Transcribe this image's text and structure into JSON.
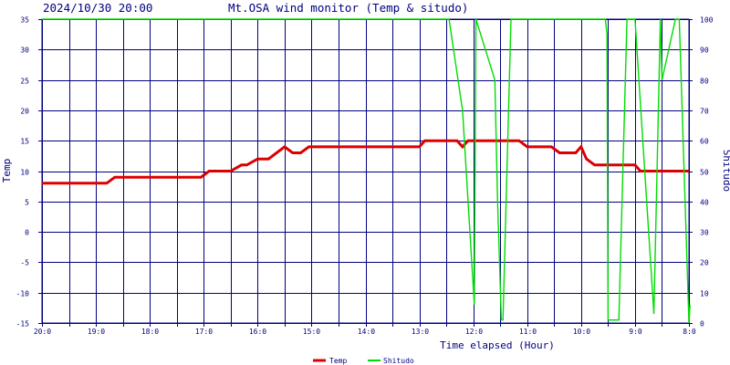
{
  "header": {
    "timestamp": "2024/10/30 20:00",
    "title": "Mt.OSA wind monitor (Temp & situdo)"
  },
  "chart_data": {
    "type": "line",
    "title": "Mt.OSA wind monitor (Temp & situdo)",
    "xlabel": "Time elapsed (Hour)",
    "ylabel_left": "Temp",
    "ylabel_right": "Shitudo",
    "xlim": [
      0,
      12
    ],
    "x_direction": "reversed",
    "x_tick_values": [
      0,
      1,
      2,
      3,
      4,
      5,
      6,
      7,
      8,
      9,
      10,
      11,
      12
    ],
    "x_tick_labels": [
      "20:0",
      "",
      "19:0",
      "",
      "18:0",
      "",
      "17:0",
      "",
      "16:0",
      "",
      "15:0",
      "",
      "14:0",
      "",
      "13:0",
      "",
      "12:0",
      "",
      "11:0",
      "",
      "10:0",
      "",
      "9:0",
      "",
      "8:0"
    ],
    "x_tick_positions_hours": [
      0,
      0.5,
      1,
      1.5,
      2,
      2.5,
      3,
      3.5,
      4,
      4.5,
      5,
      5.5,
      6,
      6.5,
      7,
      7.5,
      8,
      8.5,
      9,
      9.5,
      10,
      10.5,
      11,
      11.5,
      12
    ],
    "ylim_left": [
      -15,
      35
    ],
    "y_ticks_left": [
      -15,
      -10,
      -5,
      0,
      5,
      10,
      15,
      20,
      25,
      30,
      35
    ],
    "ylim_right": [
      0,
      100
    ],
    "y_ticks_right": [
      0,
      10,
      20,
      30,
      40,
      50,
      60,
      70,
      80,
      90,
      100
    ],
    "grid": true,
    "legend_placement": "bottom-center",
    "series": [
      {
        "name": "Temp",
        "axis": "left",
        "color": "#dd0000",
        "x": [
          0,
          1.2,
          1.35,
          2.95,
          3.1,
          3.4,
          3.5,
          3.7,
          3.8,
          4.0,
          4.2,
          4.5,
          4.65,
          4.8,
          4.95,
          5.5,
          7.0,
          7.1,
          7.7,
          7.8,
          7.9,
          8.85,
          9.0,
          9.45,
          9.6,
          9.9,
          10.0,
          10.1,
          10.25,
          11.0,
          11.1,
          12.0
        ],
        "values": [
          8,
          8,
          9,
          9,
          10,
          10,
          10,
          11,
          11,
          12,
          12,
          14,
          13,
          13,
          14,
          14,
          14,
          15,
          15,
          14,
          15,
          15,
          14,
          14,
          13,
          13,
          14,
          12,
          11,
          11,
          10,
          10
        ]
      },
      {
        "name": "Shitudo",
        "axis": "right",
        "color": "#00dd00",
        "x": [
          0,
          7.55,
          7.8,
          8.02,
          8.05,
          8.4,
          8.45,
          8.52,
          8.55,
          8.7,
          9.1,
          9.2,
          10.45,
          10.48,
          10.5,
          10.7,
          10.85,
          10.9,
          11.0,
          11.35,
          11.47,
          11.5,
          11.75,
          11.82,
          12.0,
          12.02
        ],
        "values": [
          100,
          100,
          70,
          6,
          100,
          80,
          40,
          1,
          1,
          100,
          100,
          100,
          100,
          95,
          1,
          1,
          100,
          100,
          100,
          3,
          100,
          80,
          100,
          100,
          0,
          6
        ]
      }
    ]
  }
}
